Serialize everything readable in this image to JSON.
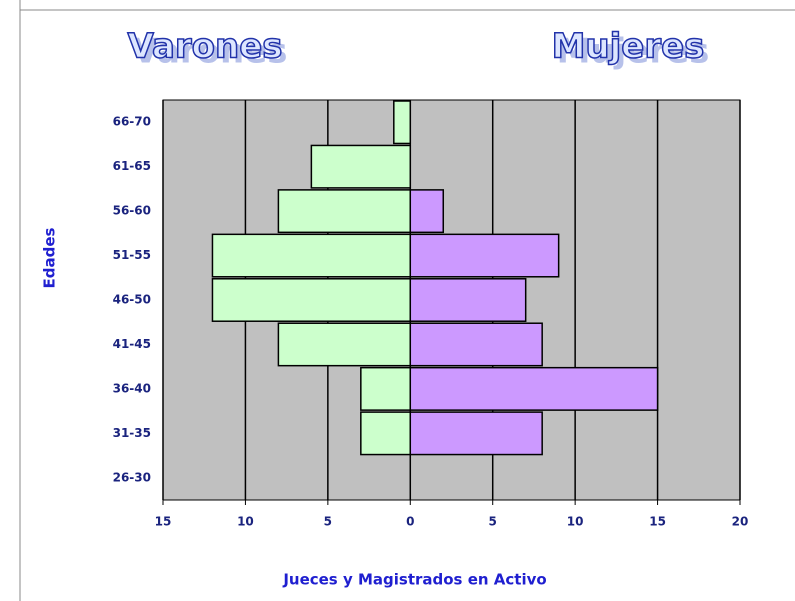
{
  "chart_data": {
    "type": "pyramid",
    "titles": [
      "Varones",
      "Mujeres"
    ],
    "ylabel": "Edades",
    "xlabel": "Jueces y Magistrados en Activo",
    "categories": [
      "66-70",
      "61-65",
      "56-60",
      "51-55",
      "46-50",
      "41-45",
      "36-40",
      "31-35",
      "26-30"
    ],
    "series": [
      {
        "name": "Varones",
        "color": "#ccffcc",
        "values": [
          -1,
          -6,
          -8,
          -12,
          -12,
          -8,
          -3,
          -3,
          0
        ]
      },
      {
        "name": "Mujeres",
        "color": "#cc99ff",
        "values": [
          0,
          0,
          2,
          9,
          7,
          8,
          15,
          8,
          0
        ]
      }
    ],
    "xlim": [
      -15,
      20
    ],
    "xticks": [
      {
        "value": -15,
        "label": "15"
      },
      {
        "value": -10,
        "label": "10"
      },
      {
        "value": -5,
        "label": "5"
      },
      0,
      5,
      10,
      15,
      20
    ],
    "grid": true,
    "plot_color": "#c0c0c0"
  }
}
